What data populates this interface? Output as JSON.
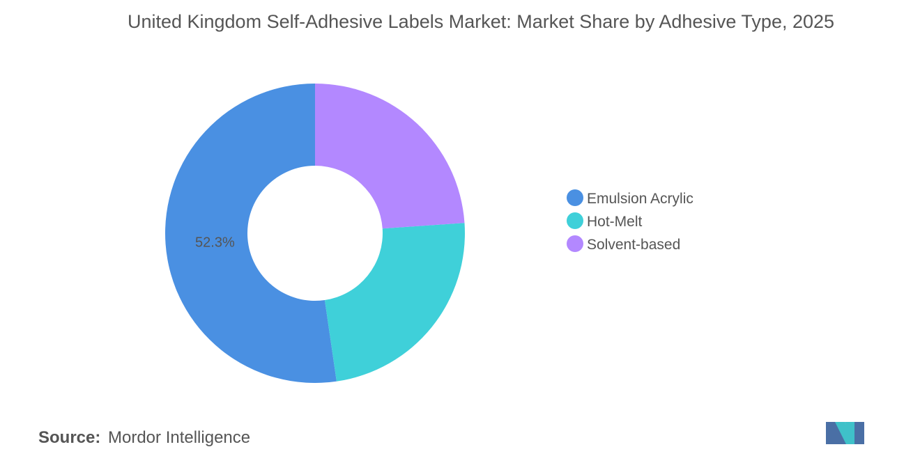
{
  "chart_data": {
    "type": "donut",
    "title": "United Kingdom Self-Adhesive Labels Market: Market Share by Adhesive Type, 2025",
    "categories": [
      "Emulsion Acrylic",
      "Hot-Melt",
      "Solvent-based"
    ],
    "values": [
      52.3,
      23.8,
      23.9
    ],
    "value_labels": [
      "52.3%",
      null,
      null
    ],
    "colors": [
      "#4a90e2",
      "#3fd0d9",
      "#b388ff"
    ],
    "legend": "right",
    "source_label": "Source:",
    "source": "Mordor Intelligence"
  }
}
